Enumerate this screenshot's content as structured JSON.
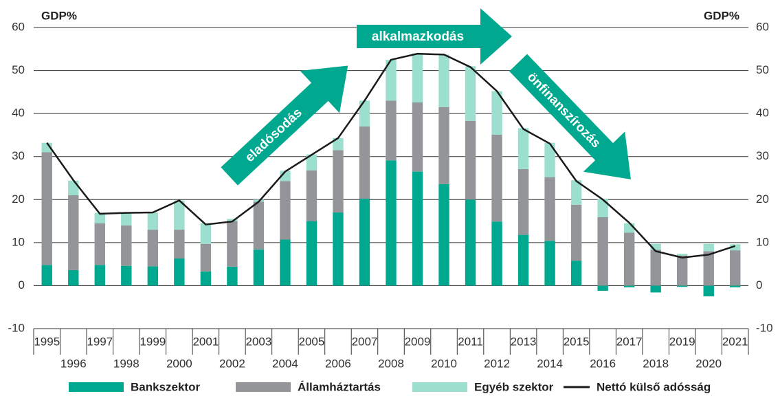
{
  "chart_data": {
    "type": "bar",
    "y_label": "GDP%",
    "y2_label": "GDP%",
    "annotations": [
      "eladósodás",
      "alkalmazkodás",
      "önfinanszírozás"
    ],
    "categories": [
      "1995",
      "1996",
      "1997",
      "1998",
      "1999",
      "2000",
      "2001",
      "2002",
      "2003",
      "2004",
      "2005",
      "2006",
      "2007",
      "2008",
      "2009",
      "2010",
      "2011",
      "2012",
      "2013",
      "2014",
      "2015",
      "2016",
      "2017",
      "2018",
      "2019",
      "2020",
      "2021"
    ],
    "series": [
      {
        "name": "Bankszektor",
        "type": "bar",
        "color": "#00a88f",
        "values": [
          4.8,
          3.6,
          4.8,
          4.6,
          4.5,
          6.3,
          3.3,
          4.4,
          8.4,
          10.7,
          15.0,
          17.0,
          20.2,
          29.1,
          26.5,
          23.6,
          20.0,
          14.9,
          11.8,
          10.4,
          5.8,
          -1.2,
          -0.4,
          -1.6,
          -0.3,
          -2.5,
          -0.4
        ]
      },
      {
        "name": "Államháztartás",
        "type": "bar",
        "color": "#939598",
        "values": [
          26.2,
          17.4,
          9.7,
          9.4,
          8.5,
          6.7,
          6.4,
          10.6,
          11.1,
          13.6,
          11.8,
          14.5,
          16.8,
          13.9,
          16.1,
          17.9,
          18.3,
          20.2,
          15.3,
          14.8,
          13.0,
          15.9,
          12.3,
          8.3,
          7.0,
          8.0,
          8.2
        ]
      },
      {
        "name": "Egyéb szektor",
        "type": "bar",
        "color": "#9ddfcf",
        "values": [
          2.2,
          3.4,
          2.4,
          2.9,
          4.0,
          6.8,
          4.8,
          0.5,
          0.5,
          2.4,
          3.7,
          2.8,
          6.0,
          9.5,
          11.4,
          12.2,
          12.7,
          10.1,
          9.5,
          8.0,
          5.7,
          4.3,
          2.2,
          1.4,
          0.4,
          1.7,
          1.4
        ]
      },
      {
        "name": "Nettó külső adósság",
        "type": "line",
        "color": "#1a1a1a",
        "values": [
          33.2,
          24.5,
          16.7,
          16.9,
          17.0,
          19.8,
          14.2,
          14.9,
          19.5,
          26.5,
          30.4,
          34.3,
          43.0,
          52.5,
          53.9,
          53.7,
          50.8,
          45.2,
          36.4,
          33.0,
          24.3,
          20.0,
          14.6,
          8.0,
          6.5,
          7.2,
          9.2
        ]
      }
    ],
    "ylim": [
      -10,
      60
    ],
    "yticks": [
      -10,
      0,
      10,
      20,
      30,
      40,
      50,
      60
    ],
    "y2lim": [
      -10,
      60
    ],
    "y2ticks": [
      -10,
      0,
      10,
      20,
      30,
      40,
      50,
      60
    ],
    "grid": true,
    "legend": "bottom"
  }
}
